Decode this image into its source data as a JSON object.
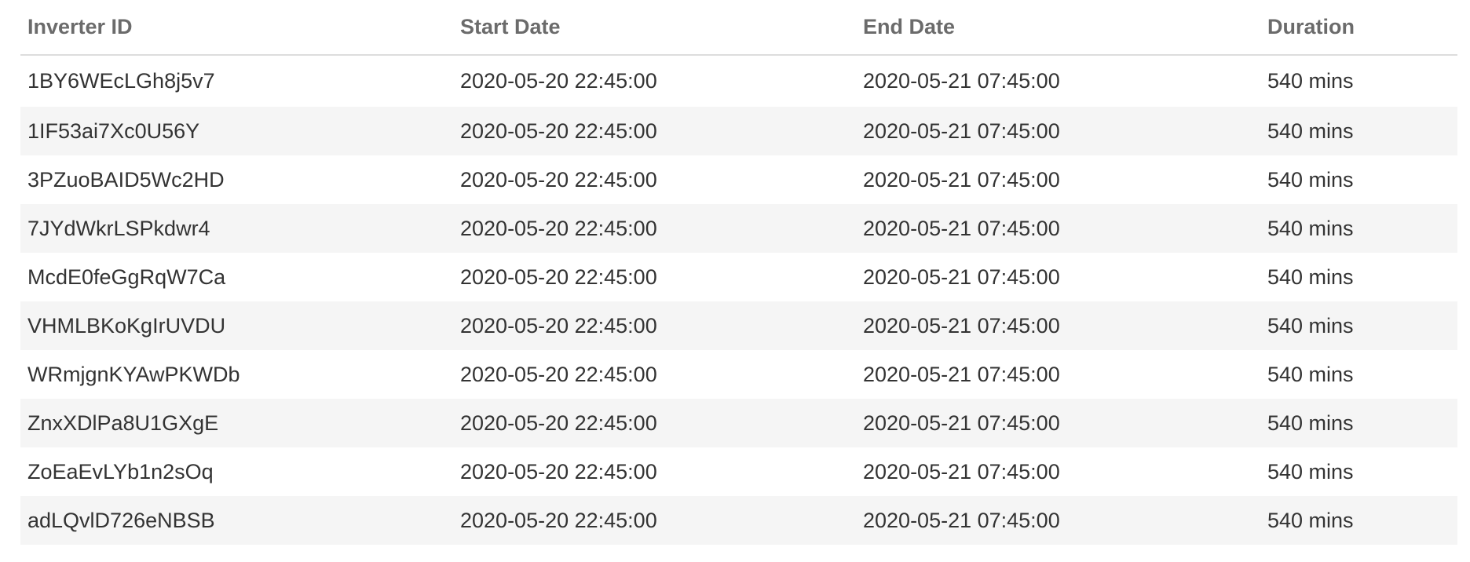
{
  "table": {
    "columns": [
      "Inverter ID",
      "Start Date",
      "End Date",
      "Duration"
    ],
    "rows": [
      [
        "1BY6WEcLGh8j5v7",
        "2020-05-20 22:45:00",
        "2020-05-21 07:45:00",
        "540 mins"
      ],
      [
        "1IF53ai7Xc0U56Y",
        "2020-05-20 22:45:00",
        "2020-05-21 07:45:00",
        "540 mins"
      ],
      [
        "3PZuoBAID5Wc2HD",
        "2020-05-20 22:45:00",
        "2020-05-21 07:45:00",
        "540 mins"
      ],
      [
        "7JYdWkrLSPkdwr4",
        "2020-05-20 22:45:00",
        "2020-05-21 07:45:00",
        "540 mins"
      ],
      [
        "McdE0feGgRqW7Ca",
        "2020-05-20 22:45:00",
        "2020-05-21 07:45:00",
        "540 mins"
      ],
      [
        "VHMLBKoKgIrUVDU",
        "2020-05-20 22:45:00",
        "2020-05-21 07:45:00",
        "540 mins"
      ],
      [
        "WRmjgnKYAwPKWDb",
        "2020-05-20 22:45:00",
        "2020-05-21 07:45:00",
        "540 mins"
      ],
      [
        "ZnxXDlPa8U1GXgE",
        "2020-05-20 22:45:00",
        "2020-05-21 07:45:00",
        "540 mins"
      ],
      [
        "ZoEaEvLYb1n2sOq",
        "2020-05-20 22:45:00",
        "2020-05-21 07:45:00",
        "540 mins"
      ],
      [
        "adLQvlD726eNBSB",
        "2020-05-20 22:45:00",
        "2020-05-21 07:45:00",
        "540 mins"
      ]
    ]
  },
  "colors": {
    "header_text": "#6b6b6b",
    "body_text": "#333333",
    "stripe_row": "#f5f5f5",
    "header_border": "#dddddd"
  }
}
